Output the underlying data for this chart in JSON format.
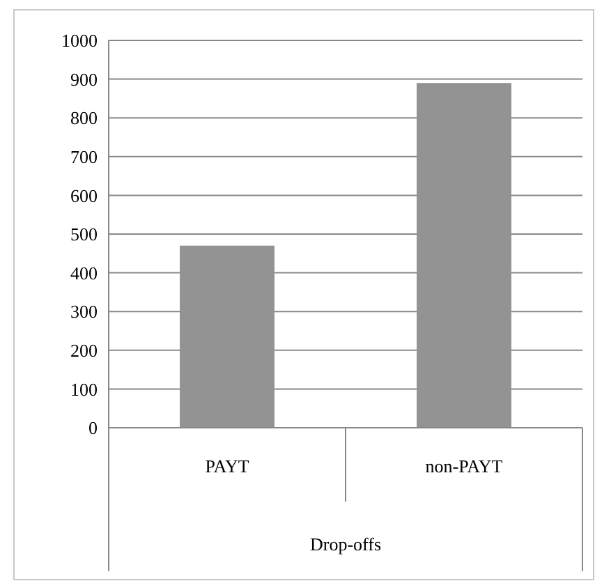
{
  "chart_data": {
    "type": "bar",
    "xlabel": "Drop-offs",
    "categories": [
      "PAYT",
      "non-PAYT"
    ],
    "values": [
      470,
      890
    ],
    "color": "#939393",
    "ylim": [
      0,
      1000
    ],
    "yticks": [
      0,
      100,
      200,
      300,
      400,
      500,
      600,
      700,
      800,
      900,
      1000
    ],
    "grid": "y"
  }
}
